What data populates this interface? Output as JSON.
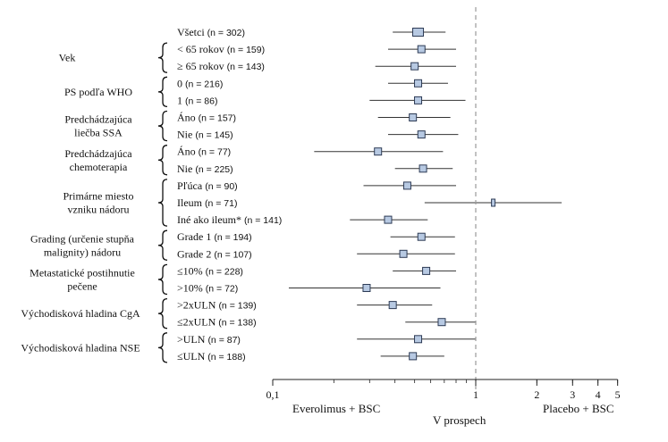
{
  "chart_data": {
    "type": "forest",
    "x_scale": "log",
    "xlim": [
      0.1,
      5
    ],
    "reference_line": 1,
    "x_ticks": [
      {
        "value": 0.1,
        "label": "0,1"
      },
      {
        "value": 1,
        "label": "1"
      },
      {
        "value": 2,
        "label": "2"
      },
      {
        "value": 3,
        "label": "3"
      },
      {
        "value": 4,
        "label": "4"
      },
      {
        "value": 5,
        "label": "5"
      }
    ],
    "left_caption": "Everolimus + BSC",
    "right_caption": "Placebo + BSC",
    "center_caption": "V prospech",
    "groups": [
      {
        "label": "Vek",
        "rows": [
          1,
          2
        ]
      },
      {
        "label": "PS podľa WHO",
        "rows": [
          3,
          4
        ]
      },
      {
        "label": "Predchádzajúca\nliečba SSA",
        "rows": [
          5,
          6
        ]
      },
      {
        "label": "Predchádzajúca\nchemoterapia",
        "rows": [
          7,
          8
        ]
      },
      {
        "label": "Primárne miesto\nvzniku nádoru",
        "rows": [
          9,
          10,
          11
        ]
      },
      {
        "label": "Grading (určenie stupňa\nmalignity) nádoru",
        "rows": [
          12,
          13
        ]
      },
      {
        "label": "Metastatické postihnutie\npečene",
        "rows": [
          14,
          15
        ]
      },
      {
        "label": "Východisková hladina CgA",
        "rows": [
          16,
          17
        ]
      },
      {
        "label": "Východisková hladina NSE",
        "rows": [
          18,
          19
        ]
      }
    ],
    "rows": [
      {
        "label": "Všetci",
        "n": "(n = 302)",
        "hr": 0.52,
        "ci": [
          0.39,
          0.71
        ]
      },
      {
        "label": "< 65 rokov",
        "n": "(n = 159)",
        "hr": 0.54,
        "ci": [
          0.37,
          0.8
        ]
      },
      {
        "label": "≥ 65 rokov",
        "n": "(n = 143)",
        "hr": 0.5,
        "ci": [
          0.32,
          0.8
        ]
      },
      {
        "label": "0",
        "n": "(n = 216)",
        "hr": 0.52,
        "ci": [
          0.37,
          0.73
        ]
      },
      {
        "label": "1",
        "n": "(n = 86)",
        "hr": 0.52,
        "ci": [
          0.3,
          0.89
        ]
      },
      {
        "label": "Áno",
        "n": "(n = 157)",
        "hr": 0.49,
        "ci": [
          0.33,
          0.75
        ]
      },
      {
        "label": "Nie",
        "n": "(n = 145)",
        "hr": 0.54,
        "ci": [
          0.37,
          0.82
        ]
      },
      {
        "label": "Áno",
        "n": "(n = 77)",
        "hr": 0.33,
        "ci": [
          0.16,
          0.69
        ]
      },
      {
        "label": "Nie",
        "n": "(n = 225)",
        "hr": 0.55,
        "ci": [
          0.4,
          0.77
        ]
      },
      {
        "label": "Pľúca",
        "n": "(n = 90)",
        "hr": 0.46,
        "ci": [
          0.28,
          0.8
        ]
      },
      {
        "label": "Ileum",
        "n": "(n = 71)",
        "hr": 1.22,
        "ci": [
          0.56,
          2.65
        ]
      },
      {
        "label": "Iné ako ileum*",
        "n": "(n = 141)",
        "hr": 0.37,
        "ci": [
          0.24,
          0.58
        ]
      },
      {
        "label": "Grade 1",
        "n": "(n = 194)",
        "hr": 0.54,
        "ci": [
          0.38,
          0.79
        ]
      },
      {
        "label": "Grade 2",
        "n": "(n = 107)",
        "hr": 0.44,
        "ci": [
          0.26,
          0.79
        ]
      },
      {
        "label": "≤10%",
        "n": "(n = 228)",
        "hr": 0.57,
        "ci": [
          0.39,
          0.8
        ]
      },
      {
        "label": ">10%",
        "n": "(n = 72)",
        "hr": 0.29,
        "ci": [
          0.12,
          0.67
        ]
      },
      {
        "label": ">2xULN",
        "n": "(n = 139)",
        "hr": 0.39,
        "ci": [
          0.26,
          0.61
        ]
      },
      {
        "label": "≤2xULN",
        "n": "(n = 138)",
        "hr": 0.68,
        "ci": [
          0.45,
          1.0
        ]
      },
      {
        "label": ">ULN",
        "n": "(n = 87)",
        "hr": 0.52,
        "ci": [
          0.26,
          1.0
        ]
      },
      {
        "label": "≤ULN",
        "n": "(n = 188)",
        "hr": 0.49,
        "ci": [
          0.34,
          0.7
        ]
      }
    ]
  }
}
